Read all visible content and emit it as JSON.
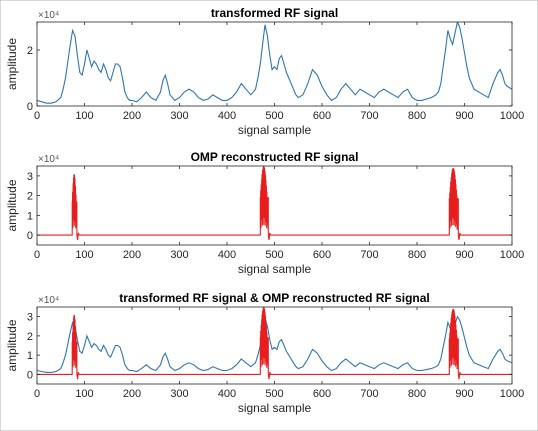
{
  "colors": {
    "transformed": "#2e75b6",
    "reconstructed": "#e81e1e",
    "axes": "#262626",
    "background": "#ffffff"
  },
  "chart_data": [
    {
      "type": "line",
      "title": "transformed RF signal",
      "xlabel": "signal sample",
      "ylabel": "amplitude",
      "exponent_label": "×10⁴",
      "xlim": [
        0,
        1000
      ],
      "ylim": [
        0,
        3
      ],
      "xticks": [
        0,
        100,
        200,
        300,
        400,
        500,
        600,
        700,
        800,
        900,
        1000
      ],
      "yticks": [
        0,
        2
      ],
      "grid": false,
      "series": [
        {
          "key": "transformed",
          "x": [
            0,
            10,
            20,
            30,
            40,
            50,
            55,
            60,
            65,
            70,
            75,
            80,
            85,
            90,
            95,
            100,
            105,
            110,
            115,
            120,
            125,
            130,
            135,
            140,
            145,
            150,
            155,
            160,
            165,
            170,
            175,
            180,
            185,
            190,
            195,
            200,
            210,
            220,
            230,
            240,
            250,
            260,
            265,
            270,
            275,
            280,
            290,
            300,
            310,
            320,
            330,
            340,
            350,
            360,
            370,
            380,
            390,
            400,
            410,
            420,
            430,
            440,
            450,
            460,
            465,
            470,
            475,
            480,
            485,
            490,
            495,
            500,
            505,
            510,
            515,
            520,
            525,
            530,
            535,
            540,
            545,
            550,
            560,
            570,
            580,
            590,
            600,
            610,
            620,
            630,
            640,
            650,
            660,
            670,
            680,
            690,
            700,
            710,
            720,
            730,
            740,
            750,
            760,
            770,
            780,
            790,
            800,
            810,
            820,
            830,
            840,
            845,
            850,
            855,
            860,
            865,
            870,
            875,
            880,
            885,
            890,
            895,
            900,
            905,
            910,
            915,
            920,
            930,
            940,
            950,
            960,
            970,
            975,
            980,
            985,
            990,
            1000
          ],
          "y": [
            0.2,
            0.15,
            0.1,
            0.1,
            0.15,
            0.3,
            0.6,
            1.0,
            1.6,
            2.2,
            2.7,
            2.5,
            1.8,
            1.2,
            1.1,
            1.5,
            2.0,
            1.7,
            1.4,
            1.6,
            1.5,
            1.3,
            1.2,
            1.5,
            1.3,
            1.0,
            0.9,
            1.2,
            1.5,
            1.5,
            1.4,
            1.0,
            0.5,
            0.3,
            0.2,
            0.2,
            0.15,
            0.3,
            0.5,
            0.3,
            0.2,
            0.5,
            0.9,
            1.1,
            0.8,
            0.4,
            0.2,
            0.3,
            0.5,
            0.6,
            0.5,
            0.3,
            0.2,
            0.25,
            0.4,
            0.3,
            0.2,
            0.2,
            0.3,
            0.5,
            0.8,
            0.6,
            0.4,
            0.6,
            1.0,
            1.5,
            2.2,
            2.9,
            2.5,
            1.8,
            1.3,
            1.4,
            1.3,
            1.7,
            1.8,
            1.5,
            1.2,
            1.0,
            0.8,
            0.6,
            0.4,
            0.3,
            0.4,
            0.8,
            1.3,
            1.1,
            0.7,
            0.4,
            0.2,
            0.3,
            0.6,
            0.8,
            0.6,
            0.4,
            0.6,
            0.5,
            0.4,
            0.3,
            0.5,
            0.6,
            0.5,
            0.4,
            0.3,
            0.5,
            0.6,
            0.3,
            0.2,
            0.2,
            0.25,
            0.3,
            0.4,
            0.5,
            0.8,
            1.4,
            2.0,
            2.7,
            2.4,
            2.2,
            2.6,
            3.0,
            2.8,
            2.4,
            1.9,
            1.4,
            1.0,
            0.8,
            0.6,
            0.5,
            0.4,
            0.3,
            0.8,
            1.2,
            1.3,
            1.1,
            0.8,
            0.7,
            0.6
          ]
        }
      ]
    },
    {
      "type": "line",
      "title": "OMP reconstructed RF signal",
      "xlabel": "signal sample",
      "ylabel": "amplitude",
      "exponent_label": "×10⁴",
      "xlim": [
        0,
        1000
      ],
      "ylim": [
        -0.5,
        3.5
      ],
      "xticks": [
        0,
        100,
        200,
        300,
        400,
        500,
        600,
        700,
        800,
        900,
        1000
      ],
      "yticks": [
        0,
        1,
        2,
        3
      ],
      "grid": false,
      "series": [
        {
          "key": "reconstructed",
          "bursts": [
            {
              "start": 74,
              "end": 84,
              "peak": 3.1
            },
            {
              "start": 470,
              "end": 487,
              "peak": 3.5
            },
            {
              "start": 868,
              "end": 887,
              "peak": 3.4
            }
          ]
        }
      ]
    },
    {
      "type": "line",
      "title": "transformed RF signal & OMP reconstructed RF signal",
      "xlabel": "signal sample",
      "ylabel": "amplitude",
      "exponent_label": "×10⁴",
      "xlim": [
        0,
        1000
      ],
      "ylim": [
        -0.5,
        3.5
      ],
      "xticks": [
        0,
        100,
        200,
        300,
        400,
        500,
        600,
        700,
        800,
        900,
        1000
      ],
      "yticks": [
        0,
        1,
        2,
        3
      ],
      "grid": false,
      "overlay": [
        "transformed",
        "reconstructed"
      ]
    }
  ]
}
